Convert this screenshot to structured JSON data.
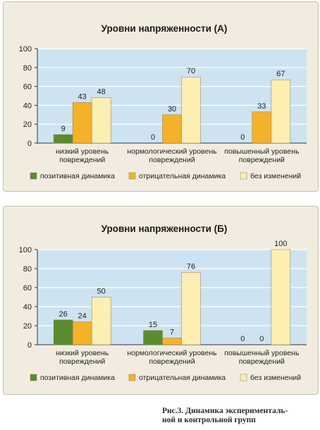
{
  "colors": {
    "positive": "#5a8c2e",
    "negative": "#f4b22a",
    "unchanged": "#fdeeb1",
    "plot_bg": "#cde3f1",
    "panel_bg": "#f1ecdf",
    "gridline": "#ffffff",
    "axis": "#333333"
  },
  "chart_data": [
    {
      "type": "bar",
      "title": "Уровни напряженности (А)",
      "categories": [
        [
          "низкий уровень",
          "повреждений"
        ],
        [
          "нормологический уровень",
          "повреждений"
        ],
        [
          "повышенный уровень",
          "повреждений"
        ]
      ],
      "series": [
        {
          "name": "позитивная динамика",
          "values": [
            9,
            0,
            0
          ]
        },
        {
          "name": "отрицательная динамика",
          "values": [
            43,
            30,
            33
          ]
        },
        {
          "name": "без изменений",
          "values": [
            48,
            70,
            67
          ]
        }
      ],
      "ylim": [
        0,
        100
      ],
      "yticks": [
        "0",
        "20",
        "40",
        "60",
        "80",
        "100"
      ],
      "grid": true,
      "legend_position": "bottom"
    },
    {
      "type": "bar",
      "title": "Уровни напряженности (Б)",
      "categories": [
        [
          "низкий уровень",
          "повреждений"
        ],
        [
          "нормологический уровень",
          "повреждений"
        ],
        [
          "повышенный уровень",
          "повреждений"
        ]
      ],
      "series": [
        {
          "name": "позитивная динамика",
          "values": [
            26,
            15,
            0
          ]
        },
        {
          "name": "отрицательная динамика",
          "values": [
            24,
            7,
            0
          ]
        },
        {
          "name": "без изменений",
          "values": [
            50,
            76,
            100
          ]
        }
      ],
      "ylim": [
        0,
        100
      ],
      "yticks": [
        "0",
        "20",
        "40",
        "60",
        "80",
        "100"
      ],
      "grid": true,
      "legend_position": "bottom"
    }
  ],
  "caption": {
    "line1": "Рис.3. Динамика эксперименталь-",
    "line2": "ной и контрольной групп"
  }
}
